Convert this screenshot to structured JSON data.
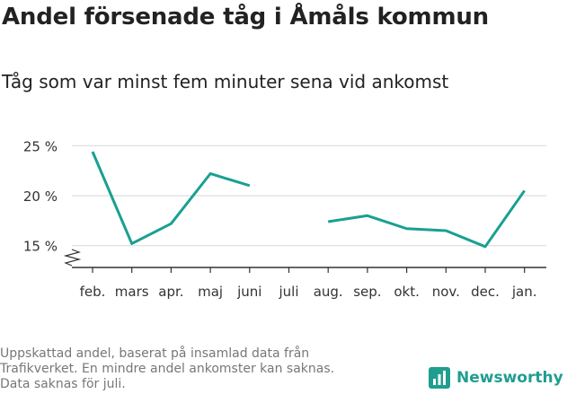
{
  "title": "Andel försenade tåg i Åmåls kommun",
  "subtitle": "Tåg som var minst fem minuter sena vid ankomst",
  "footnote": [
    "Uppskattad andel, baserat på insamlad data från",
    "Trafikverket. En mindre andel ankomster kan saknas.",
    "Data saknas för juli."
  ],
  "brand": "Newsworthy",
  "colors": {
    "line": "#18a092",
    "grid": "#dddddd",
    "axis": "#333333",
    "brand": "#1f9e8f"
  },
  "chart_data": {
    "type": "line",
    "categories": [
      "feb.",
      "mars",
      "apr.",
      "maj",
      "juni",
      "juli",
      "aug.",
      "sep.",
      "okt.",
      "nov.",
      "dec.",
      "jan."
    ],
    "series": [
      {
        "values": [
          24.4,
          15.2,
          17.2,
          22.2,
          21.0,
          null,
          17.4,
          18.0,
          16.7,
          16.5,
          14.9,
          20.5
        ]
      }
    ],
    "yticks": [
      "15 %",
      "20 %",
      "25 %"
    ],
    "ytick_values": [
      15,
      20,
      25
    ],
    "ylim": [
      13,
      26
    ],
    "y_axis_break": true,
    "grid": true
  }
}
